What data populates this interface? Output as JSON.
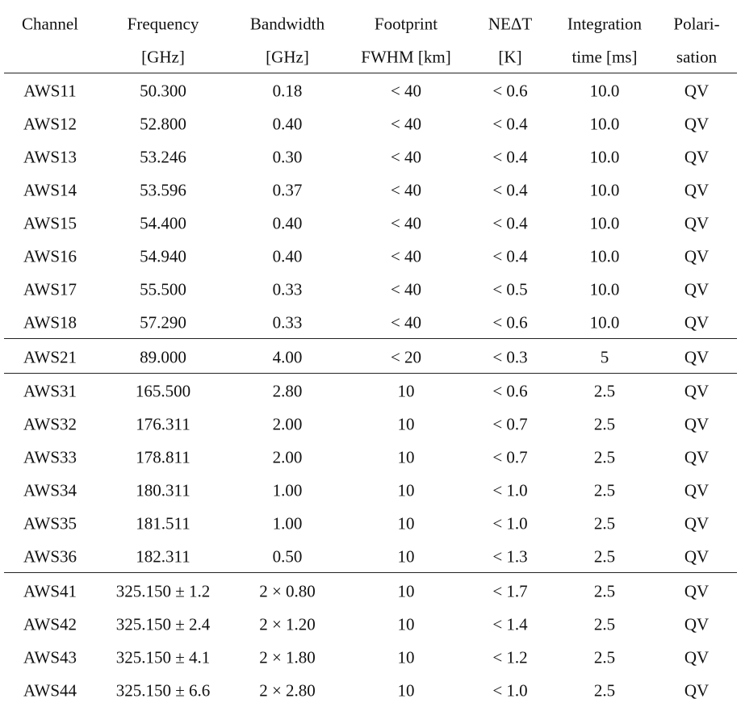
{
  "table": {
    "header": [
      [
        "Channel"
      ],
      [
        "Frequency",
        "[GHz]"
      ],
      [
        "Bandwidth",
        "[GHz]"
      ],
      [
        "Footprint",
        "FWHM [km]"
      ],
      [
        "NEΔT",
        "[K]"
      ],
      [
        "Integration",
        "time [ms]"
      ],
      [
        "Polari-",
        "sation"
      ]
    ],
    "groups": [
      [
        [
          "AWS11",
          "50.300",
          "0.18",
          "< 40",
          "< 0.6",
          "10.0",
          "QV"
        ],
        [
          "AWS12",
          "52.800",
          "0.40",
          "< 40",
          "< 0.4",
          "10.0",
          "QV"
        ],
        [
          "AWS13",
          "53.246",
          "0.30",
          "< 40",
          "< 0.4",
          "10.0",
          "QV"
        ],
        [
          "AWS14",
          "53.596",
          "0.37",
          "< 40",
          "< 0.4",
          "10.0",
          "QV"
        ],
        [
          "AWS15",
          "54.400",
          "0.40",
          "< 40",
          "< 0.4",
          "10.0",
          "QV"
        ],
        [
          "AWS16",
          "54.940",
          "0.40",
          "< 40",
          "< 0.4",
          "10.0",
          "QV"
        ],
        [
          "AWS17",
          "55.500",
          "0.33",
          "< 40",
          "< 0.5",
          "10.0",
          "QV"
        ],
        [
          "AWS18",
          "57.290",
          "0.33",
          "< 40",
          "< 0.6",
          "10.0",
          "QV"
        ]
      ],
      [
        [
          "AWS21",
          "89.000",
          "4.00",
          "< 20",
          "< 0.3",
          "5",
          "QV"
        ]
      ],
      [
        [
          "AWS31",
          "165.500",
          "2.80",
          "10",
          "< 0.6",
          "2.5",
          "QV"
        ],
        [
          "AWS32",
          "176.311",
          "2.00",
          "10",
          "< 0.7",
          "2.5",
          "QV"
        ],
        [
          "AWS33",
          "178.811",
          "2.00",
          "10",
          "< 0.7",
          "2.5",
          "QV"
        ],
        [
          "AWS34",
          "180.311",
          "1.00",
          "10",
          "< 1.0",
          "2.5",
          "QV"
        ],
        [
          "AWS35",
          "181.511",
          "1.00",
          "10",
          "< 1.0",
          "2.5",
          "QV"
        ],
        [
          "AWS36",
          "182.311",
          "0.50",
          "10",
          "< 1.3",
          "2.5",
          "QV"
        ]
      ],
      [
        [
          "AWS41",
          "325.150 ± 1.2",
          "2 × 0.80",
          "10",
          "< 1.7",
          "2.5",
          "QV"
        ],
        [
          "AWS42",
          "325.150 ± 2.4",
          "2 × 1.20",
          "10",
          "< 1.4",
          "2.5",
          "QV"
        ],
        [
          "AWS43",
          "325.150 ± 4.1",
          "2 × 1.80",
          "10",
          "< 1.2",
          "2.5",
          "QV"
        ],
        [
          "AWS44",
          "325.150 ± 6.6",
          "2 × 2.80",
          "10",
          "< 1.0",
          "2.5",
          "QV"
        ]
      ]
    ]
  }
}
